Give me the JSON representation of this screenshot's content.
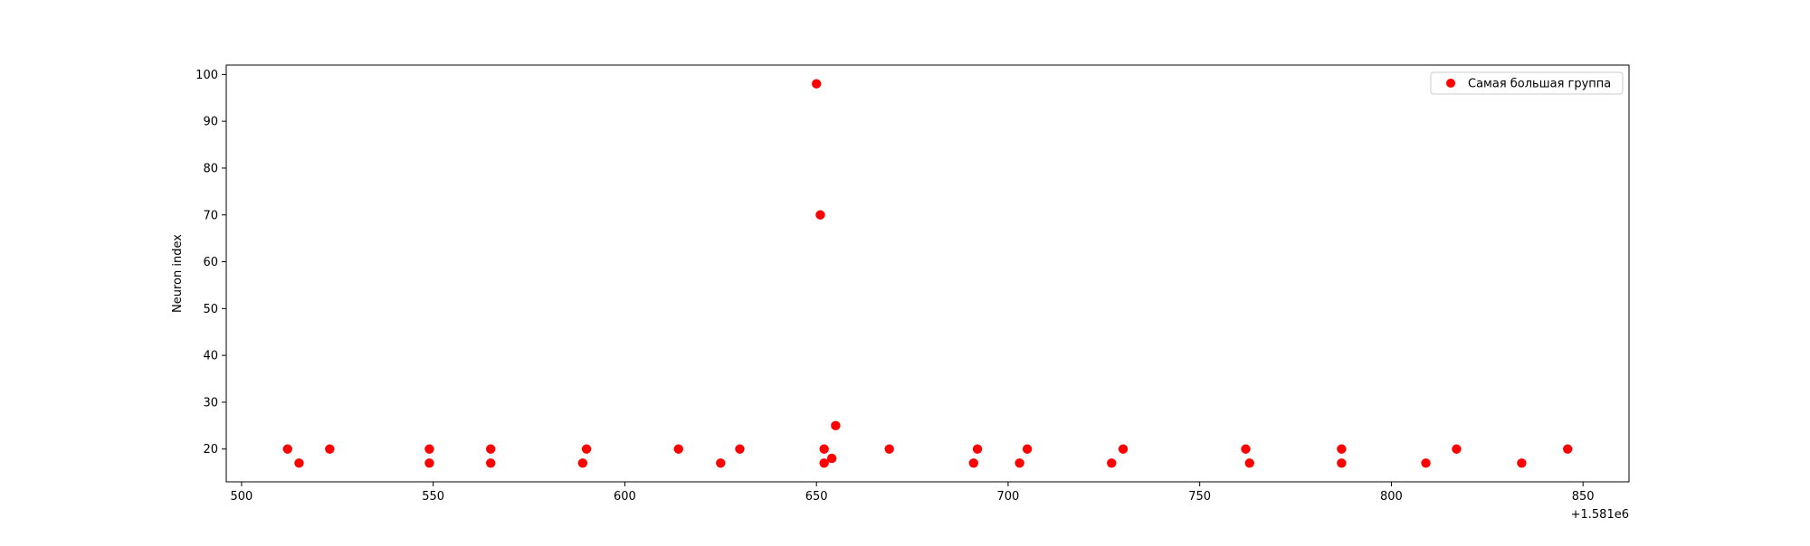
{
  "chart_data": {
    "type": "scatter",
    "title": "",
    "xlabel": "",
    "ylabel": "Neuron index",
    "x_offset_label": "+1.581e6",
    "xlim": [
      1581496,
      1581862
    ],
    "ylim": [
      13,
      102
    ],
    "x_ticks": [
      500,
      550,
      600,
      650,
      700,
      750,
      800,
      850
    ],
    "y_ticks": [
      20,
      30,
      40,
      50,
      60,
      70,
      80,
      90,
      100
    ],
    "grid": false,
    "legend_position": "top-right",
    "series": [
      {
        "name": "Самая большая группа",
        "color": "#ff0000",
        "marker": "circle",
        "points": [
          {
            "x": 1581512,
            "y": 20
          },
          {
            "x": 1581515,
            "y": 17
          },
          {
            "x": 1581523,
            "y": 20
          },
          {
            "x": 1581549,
            "y": 20
          },
          {
            "x": 1581549,
            "y": 17
          },
          {
            "x": 1581565,
            "y": 20
          },
          {
            "x": 1581565,
            "y": 17
          },
          {
            "x": 1581589,
            "y": 17
          },
          {
            "x": 1581590,
            "y": 20
          },
          {
            "x": 1581614,
            "y": 20
          },
          {
            "x": 1581625,
            "y": 17
          },
          {
            "x": 1581630,
            "y": 20
          },
          {
            "x": 1581650,
            "y": 98
          },
          {
            "x": 1581651,
            "y": 70
          },
          {
            "x": 1581652,
            "y": 20
          },
          {
            "x": 1581652,
            "y": 17
          },
          {
            "x": 1581654,
            "y": 18
          },
          {
            "x": 1581655,
            "y": 25
          },
          {
            "x": 1581669,
            "y": 20
          },
          {
            "x": 1581691,
            "y": 17
          },
          {
            "x": 1581692,
            "y": 20
          },
          {
            "x": 1581703,
            "y": 17
          },
          {
            "x": 1581705,
            "y": 20
          },
          {
            "x": 1581727,
            "y": 17
          },
          {
            "x": 1581730,
            "y": 20
          },
          {
            "x": 1581762,
            "y": 20
          },
          {
            "x": 1581763,
            "y": 17
          },
          {
            "x": 1581787,
            "y": 20
          },
          {
            "x": 1581787,
            "y": 17
          },
          {
            "x": 1581809,
            "y": 17
          },
          {
            "x": 1581817,
            "y": 20
          },
          {
            "x": 1581834,
            "y": 17
          },
          {
            "x": 1581846,
            "y": 20
          }
        ]
      }
    ]
  }
}
